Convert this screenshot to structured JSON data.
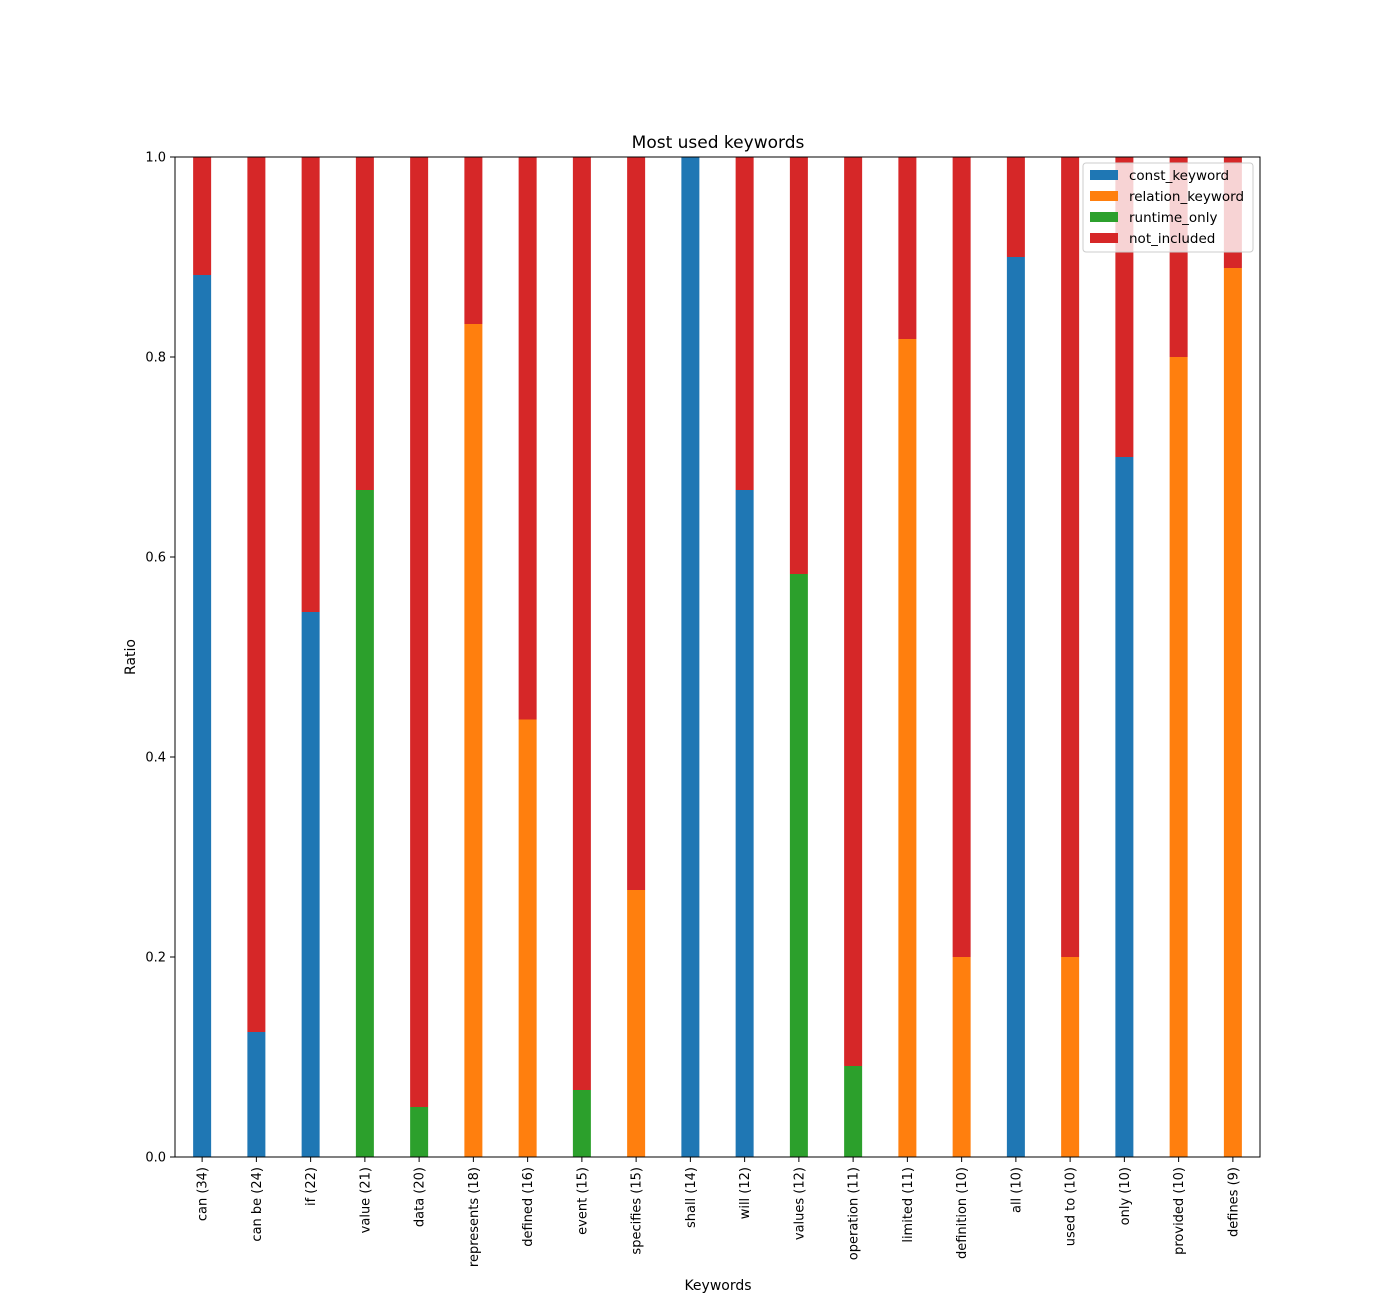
{
  "chart_data": {
    "type": "bar",
    "stacked": true,
    "title": "Most used keywords",
    "xlabel": "Keywords",
    "ylabel": "Ratio",
    "ylim": [
      0,
      1
    ],
    "yticks": [
      "0.0",
      "0.2",
      "0.4",
      "0.6",
      "0.8",
      "1.0"
    ],
    "grid": false,
    "legend_position": "top-right",
    "categories": [
      "can (34)",
      "can be (24)",
      "if (22)",
      "value (21)",
      "data (20)",
      "represents (18)",
      "defined (16)",
      "event (15)",
      "specifies (15)",
      "shall (14)",
      "will (12)",
      "values (12)",
      "operation (11)",
      "limited (11)",
      "definition (10)",
      "all (10)",
      "used to (10)",
      "only (10)",
      "provided (10)",
      "defines (9)"
    ],
    "series": [
      {
        "name": "const_keyword",
        "color": "#1f77b4",
        "values": [
          0.882,
          0.125,
          0.545,
          0,
          0,
          0,
          0,
          0,
          0,
          1.0,
          0.667,
          0,
          0,
          0,
          0,
          0.9,
          0,
          0.7,
          0,
          0
        ]
      },
      {
        "name": "relation_keyword",
        "color": "#ff7f0e",
        "values": [
          0,
          0,
          0,
          0,
          0,
          0.833,
          0.4375,
          0,
          0.267,
          0,
          0,
          0,
          0,
          0.818,
          0.2,
          0,
          0.2,
          0,
          0.8,
          0.889
        ]
      },
      {
        "name": "runtime_only",
        "color": "#2ca02c",
        "values": [
          0,
          0,
          0,
          0.667,
          0.05,
          0,
          0,
          0.067,
          0,
          0,
          0,
          0.583,
          0.091,
          0,
          0,
          0,
          0,
          0,
          0,
          0
        ]
      },
      {
        "name": "not_included",
        "color": "#d62728",
        "values": [
          0.118,
          0.875,
          0.455,
          0.333,
          0.95,
          0.167,
          0.5625,
          0.933,
          0.733,
          0,
          0.333,
          0.417,
          0.909,
          0.182,
          0.8,
          0.1,
          0.8,
          0.3,
          0.2,
          0.111
        ]
      }
    ]
  }
}
